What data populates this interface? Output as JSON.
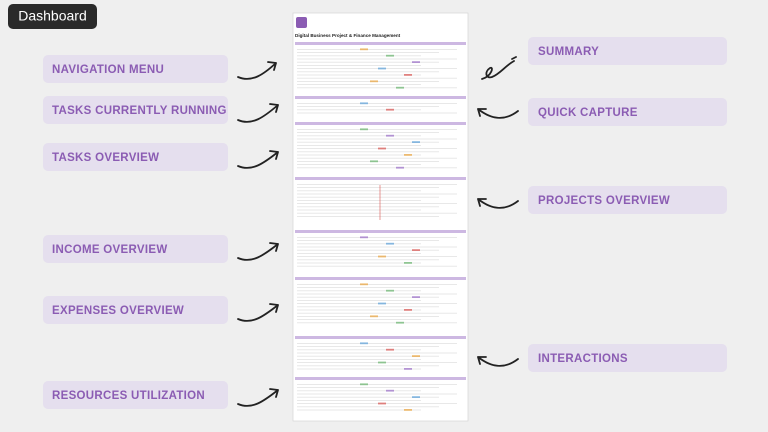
{
  "badge": "Dashboard",
  "page_title": "Digital Business Project & Finance Management",
  "left_labels": [
    "NAVIGATION MENU",
    "TASKS CURRENTLY RUNNING",
    "TASKS OVERVIEW",
    "INCOME OVERVIEW",
    "EXPENSES OVERVIEW",
    "RESOURCES UTILIZATION"
  ],
  "right_labels": [
    "SUMMARY",
    "QUICK CAPTURE",
    "PROJECTS OVERVIEW",
    "INTERACTIONS"
  ]
}
